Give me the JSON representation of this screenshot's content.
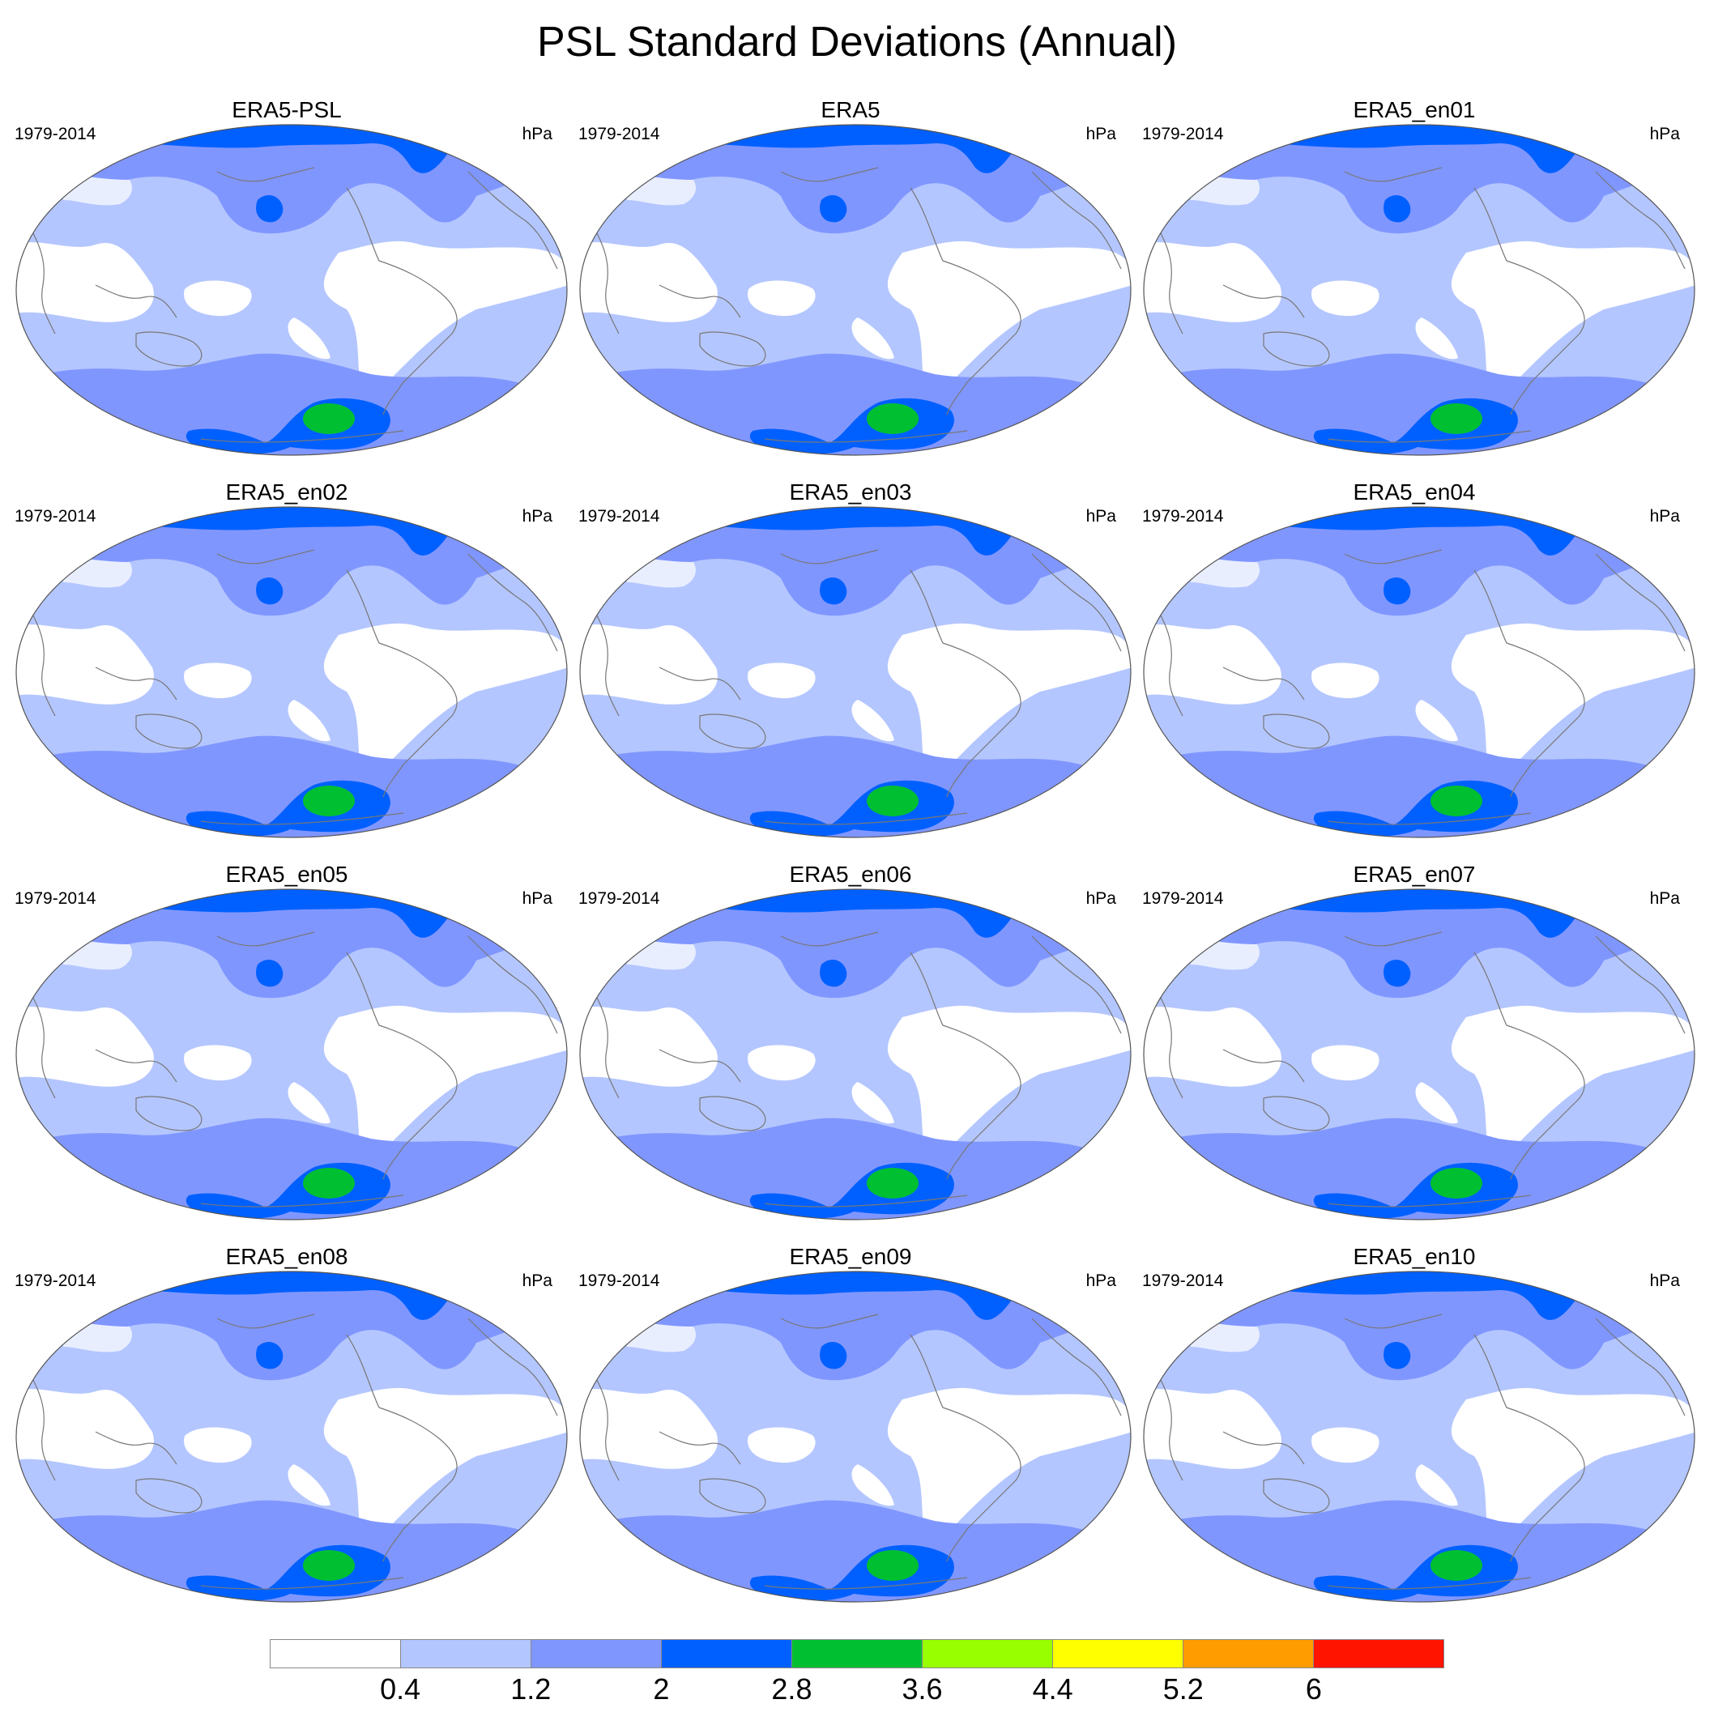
{
  "title": "PSL Standard Deviations (Annual)",
  "panels": [
    {
      "title": "ERA5-PSL",
      "left_label": "1979-2014",
      "right_label": "hPa"
    },
    {
      "title": "ERA5",
      "left_label": "1979-2014",
      "right_label": "hPa"
    },
    {
      "title": "ERA5_en01",
      "left_label": "1979-2014",
      "right_label": "hPa"
    },
    {
      "title": "ERA5_en02",
      "left_label": "1979-2014",
      "right_label": "hPa"
    },
    {
      "title": "ERA5_en03",
      "left_label": "1979-2014",
      "right_label": "hPa"
    },
    {
      "title": "ERA5_en04",
      "left_label": "1979-2014",
      "right_label": "hPa"
    },
    {
      "title": "ERA5_en05",
      "left_label": "1979-2014",
      "right_label": "hPa"
    },
    {
      "title": "ERA5_en06",
      "left_label": "1979-2014",
      "right_label": "hPa"
    },
    {
      "title": "ERA5_en07",
      "left_label": "1979-2014",
      "right_label": "hPa"
    },
    {
      "title": "ERA5_en08",
      "left_label": "1979-2014",
      "right_label": "hPa"
    },
    {
      "title": "ERA5_en09",
      "left_label": "1979-2014",
      "right_label": "hPa"
    },
    {
      "title": "ERA5_en10",
      "left_label": "1979-2014",
      "right_label": "hPa"
    }
  ],
  "colorbar": {
    "colors": [
      "#ffffff",
      "#b4c6ff",
      "#8096ff",
      "#0060ff",
      "#00c032",
      "#98ff00",
      "#ffff00",
      "#ff9c00",
      "#ff1400"
    ],
    "labels": [
      "0.4",
      "1.2",
      "2",
      "2.8",
      "3.6",
      "4.4",
      "5.2",
      "6"
    ]
  }
}
